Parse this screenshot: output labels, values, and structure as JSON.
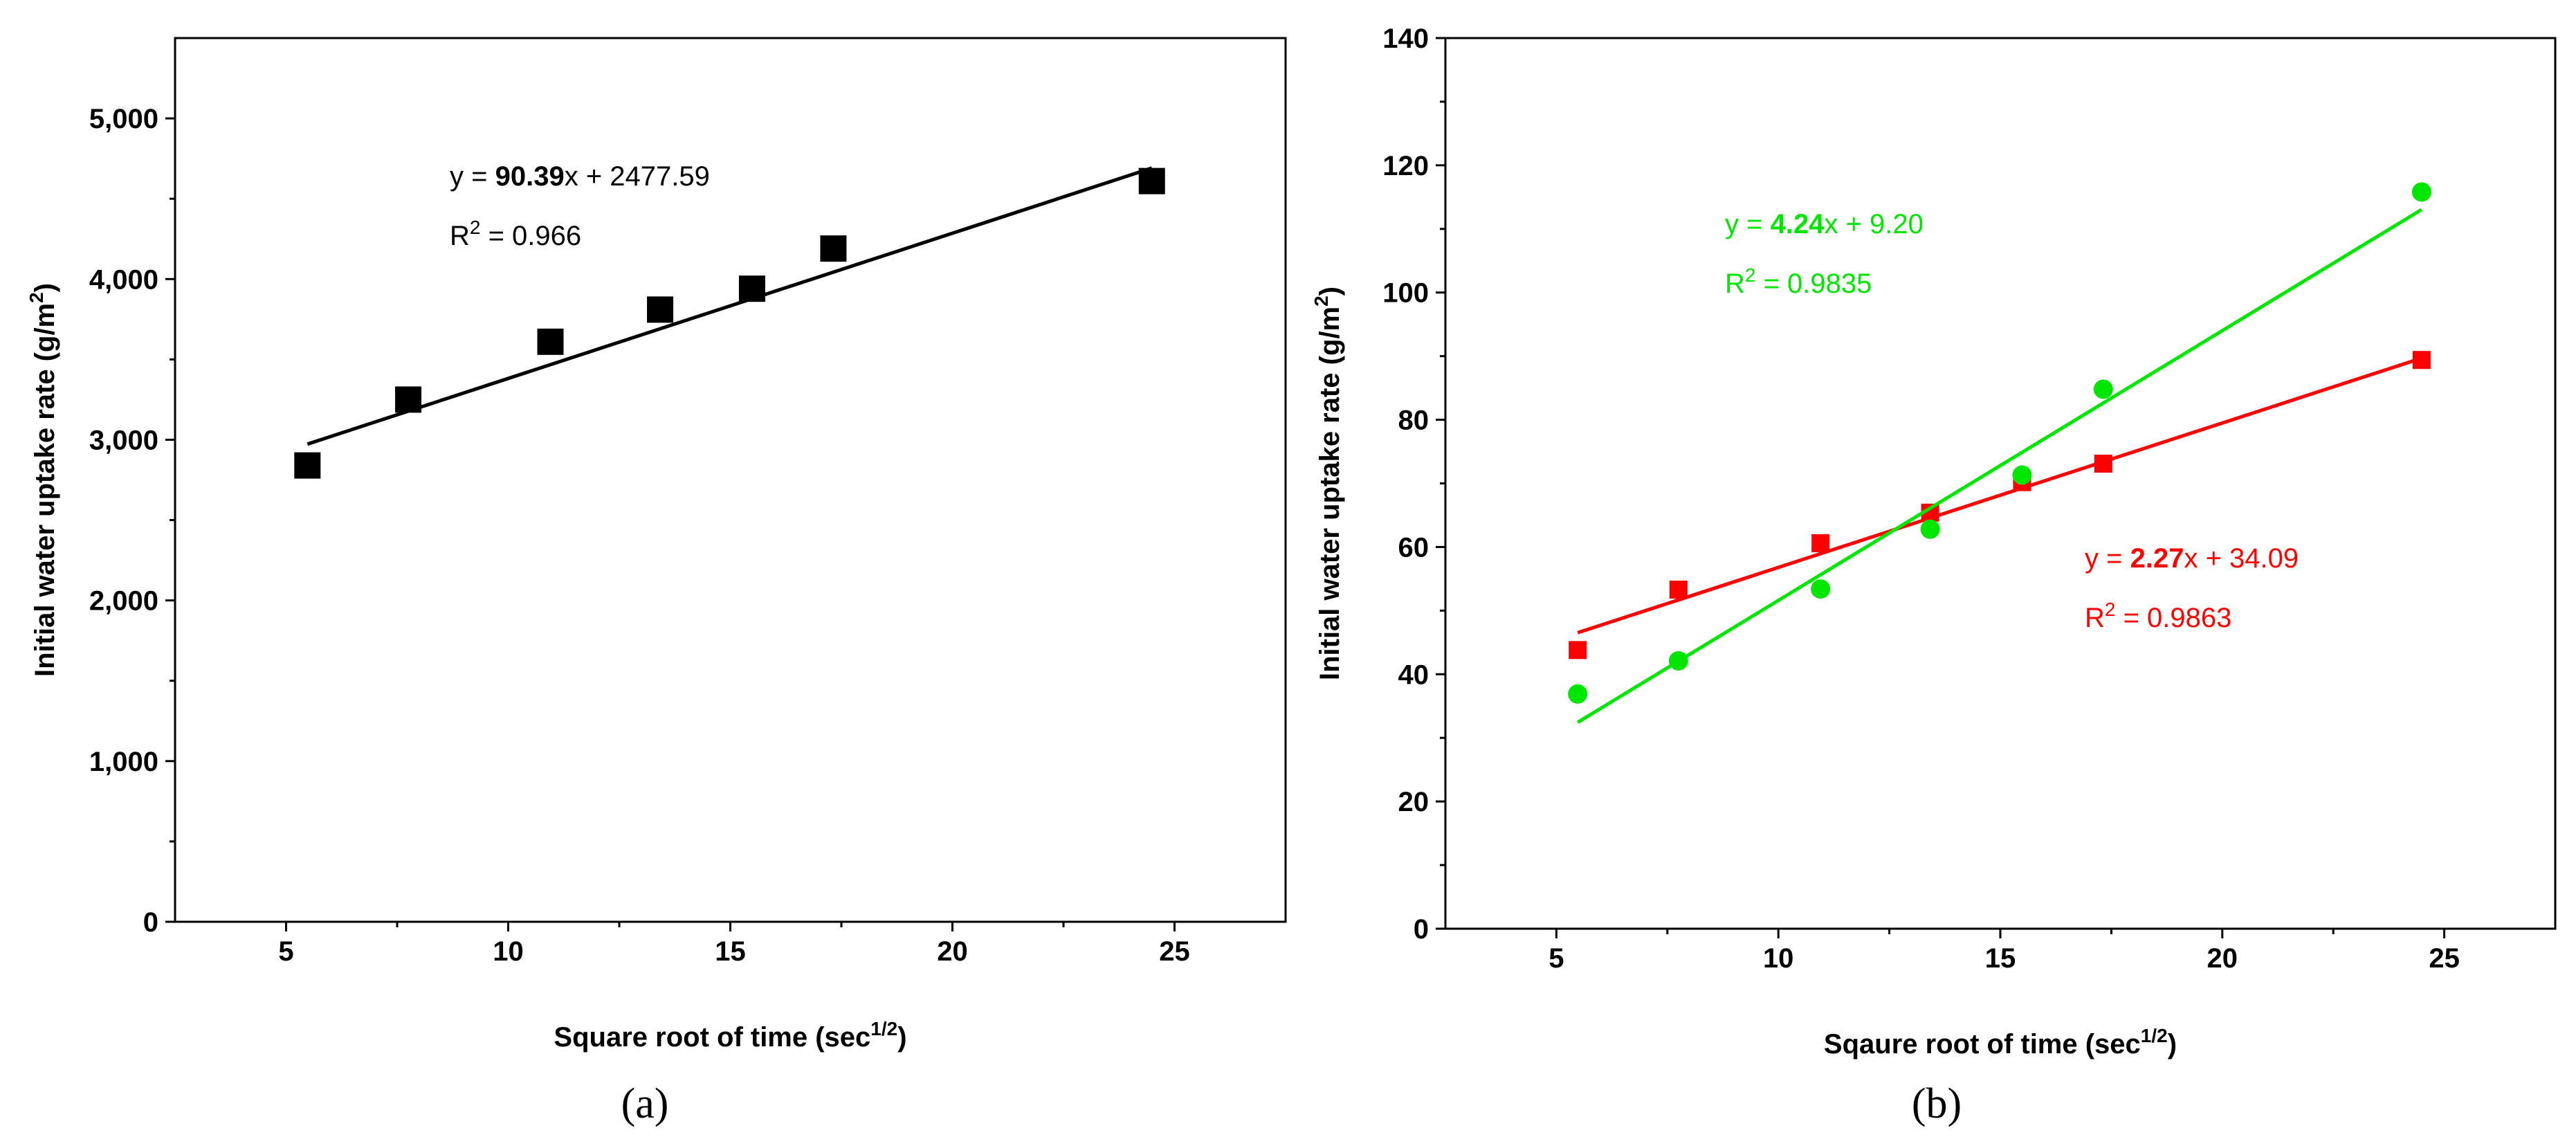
{
  "chart_data": [
    {
      "type": "scatter",
      "panel": "(a)",
      "caption_letter": "a",
      "xlabel": "Square root of time (sec",
      "xlabel_sup": "1/2",
      "xlabel_end": ")",
      "ylabel": "Initial water uptake rate (g/m",
      "ylabel_sup": "2",
      "ylabel_end": ")",
      "xlim": [
        2.5,
        27.5
      ],
      "ylim": [
        0,
        5500
      ],
      "xticks": [
        5,
        10,
        15,
        20,
        25
      ],
      "yticks": [
        0,
        1000,
        2000,
        3000,
        4000,
        5000
      ],
      "ytick_labels": [
        "0",
        "1,000",
        "2,000",
        "3,000",
        "4,000",
        "5,000"
      ],
      "series": [
        {
          "name": "data",
          "color": "#000000",
          "marker": "square",
          "x": [
            5.48,
            7.75,
            10.95,
            13.42,
            15.49,
            17.32,
            24.49
          ],
          "y": [
            2840,
            3250,
            3610,
            3810,
            3940,
            4190,
            4610
          ],
          "fit": {
            "slope": 90.39,
            "intercept": 2477.59
          },
          "equation": {
            "prefix": "y = ",
            "slope_text": "90.39",
            "suffix": "x + 2477.59",
            "r2_prefix": "R",
            "r2_sup": "2",
            "r2_suffix": " = 0.966"
          }
        }
      ]
    },
    {
      "type": "scatter",
      "panel": "(b)",
      "caption_letter": "b",
      "xlabel": "Sqaure root of time (sec",
      "xlabel_sup": "1/2",
      "xlabel_end": ")",
      "ylabel": "Initial water uptake rate (g/m",
      "ylabel_sup": "2",
      "ylabel_end": ")",
      "xlim": [
        2.5,
        27.5
      ],
      "ylim": [
        0,
        140
      ],
      "xticks": [
        5,
        10,
        15,
        20,
        25
      ],
      "yticks": [
        0,
        20,
        40,
        60,
        80,
        100,
        120,
        140
      ],
      "ytick_labels": [
        "0",
        "20",
        "40",
        "60",
        "80",
        "100",
        "120",
        "140"
      ],
      "series": [
        {
          "name": "red",
          "color": "#ff0000",
          "marker": "square",
          "x": [
            5.48,
            7.75,
            10.95,
            13.42,
            15.49,
            17.32,
            24.49
          ],
          "y": [
            43.8,
            53.3,
            60.6,
            65.4,
            70.2,
            73.1,
            89.4
          ],
          "fit": {
            "slope": 2.27,
            "intercept": 34.09
          },
          "equation": {
            "prefix": "y = ",
            "slope_text": "2.27",
            "suffix": "x + 34.09",
            "r2_prefix": "R",
            "r2_sup": "2",
            "r2_suffix": " = 0.9863"
          }
        },
        {
          "name": "green",
          "color": "#00e600",
          "marker": "circle",
          "x": [
            5.48,
            7.75,
            10.95,
            13.42,
            15.49,
            17.32,
            24.49
          ],
          "y": [
            36.9,
            42.1,
            53.4,
            62.8,
            71.3,
            84.8,
            115.8
          ],
          "fit": {
            "slope": 4.24,
            "intercept": 9.2
          },
          "equation": {
            "prefix": "y = ",
            "slope_text": "4.24",
            "suffix": "x + 9.20",
            "r2_prefix": "R",
            "r2_sup": "2",
            "r2_suffix": " = 0.9835"
          }
        }
      ]
    }
  ]
}
